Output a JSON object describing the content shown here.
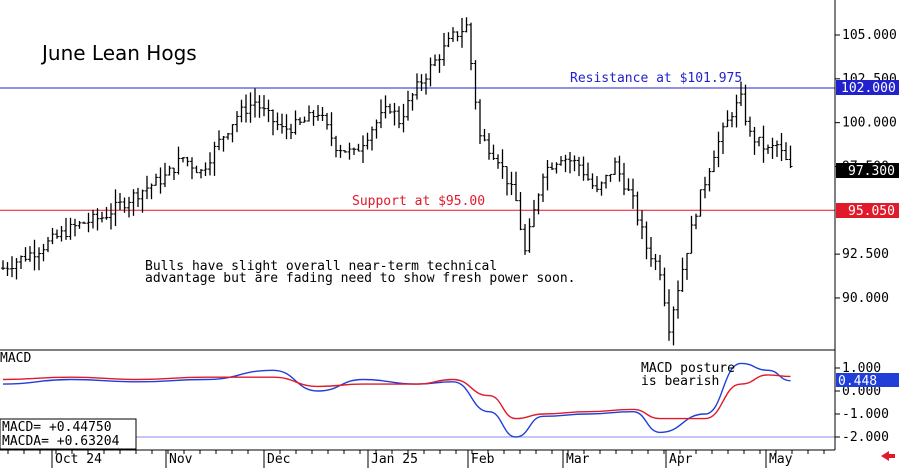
{
  "chart_data": [
    {
      "type": "ohlc",
      "title": "June Lean Hogs",
      "y_ticks": [
        "105.000",
        "102.500",
        "100.000",
        "97.500",
        "92.500",
        "90.000"
      ],
      "ylim": [
        87.5,
        107
      ],
      "x_ticks": [
        "Oct 24",
        "Nov",
        "Dec",
        "Jan 25",
        "Feb",
        "Mar",
        "Apr",
        "May"
      ],
      "reference_lines": [
        {
          "label": "Resistance at $101.975",
          "value": 101.975,
          "price_tag": "102.000",
          "color": "#2222cc"
        },
        {
          "label": "Support at $95.00",
          "value": 95.0,
          "price_tag": "95.050",
          "color": "#e0192b"
        }
      ],
      "last_price_tag": "97.300",
      "last_value": 97.3,
      "annotation": "Bulls have slight overall near-term technical advantage but are fading need to show fresh power soon.",
      "annotation_lines": [
        "Bulls have slight overall near-term technical",
        "advantage but are fading need to show fresh power soon."
      ],
      "close_path": [
        [
          0,
          91.7
        ],
        [
          8,
          92.8
        ],
        [
          14,
          93.8
        ],
        [
          18,
          94.3
        ],
        [
          22,
          94.6
        ],
        [
          26,
          95.3
        ],
        [
          30,
          96.0
        ],
        [
          36,
          96.9
        ],
        [
          40,
          98.0
        ],
        [
          44,
          97.2
        ],
        [
          48,
          98.9
        ],
        [
          52,
          100.4
        ],
        [
          56,
          101.2
        ],
        [
          58,
          100.6
        ],
        [
          62,
          99.6
        ],
        [
          66,
          99.9
        ],
        [
          70,
          100.6
        ],
        [
          74,
          98.7
        ],
        [
          78,
          98.2
        ],
        [
          82,
          99.7
        ],
        [
          86,
          100.9
        ],
        [
          88,
          100.1
        ],
        [
          92,
          102.0
        ],
        [
          96,
          103.5
        ],
        [
          100,
          104.9
        ],
        [
          103,
          105.5
        ],
        [
          106,
          99.2
        ],
        [
          110,
          98.0
        ],
        [
          114,
          95.5
        ],
        [
          116,
          92.6
        ],
        [
          120,
          97.2
        ],
        [
          124,
          98.1
        ],
        [
          128,
          97.6
        ],
        [
          132,
          96.0
        ],
        [
          136,
          97.6
        ],
        [
          140,
          95.5
        ],
        [
          143,
          92.9
        ],
        [
          146,
          91.6
        ],
        [
          148,
          88.4
        ],
        [
          152,
          92.8
        ],
        [
          154,
          95.0
        ],
        [
          158,
          98.3
        ],
        [
          162,
          100.6
        ],
        [
          164,
          101.3
        ],
        [
          166,
          99.3
        ],
        [
          170,
          98.4
        ],
        [
          172,
          98.7
        ],
        [
          175,
          97.3
        ]
      ]
    },
    {
      "type": "line",
      "title": "MACD",
      "y_ticks": [
        "1.000",
        "0.000",
        "-1.000",
        "-2.000"
      ],
      "ylim": [
        -2.3,
        1.5
      ],
      "readout_macd": "MACD=  +0.44750",
      "readout_macda": "MACDA= +0.63204",
      "last_value_tag": "0.448",
      "annotation_lines": [
        "MACD posture",
        "is bearish"
      ],
      "series": [
        {
          "name": "MACD",
          "color": "#1f3fd8",
          "points": [
            [
              0,
              0.3
            ],
            [
              15,
              0.5
            ],
            [
              30,
              0.4
            ],
            [
              45,
              0.5
            ],
            [
              60,
              0.9
            ],
            [
              70,
              0.0
            ],
            [
              80,
              0.5
            ],
            [
              92,
              0.3
            ],
            [
              100,
              0.4
            ],
            [
              108,
              -0.9
            ],
            [
              114,
              -2.0
            ],
            [
              120,
              -1.1
            ],
            [
              130,
              -1.0
            ],
            [
              140,
              -0.9
            ],
            [
              146,
              -1.8
            ],
            [
              156,
              -1.0
            ],
            [
              164,
              1.2
            ],
            [
              170,
              0.9
            ],
            [
              175,
              0.448
            ]
          ]
        },
        {
          "name": "MACDA",
          "color": "#e0192b",
          "points": [
            [
              0,
              0.5
            ],
            [
              15,
              0.6
            ],
            [
              30,
              0.5
            ],
            [
              45,
              0.6
            ],
            [
              60,
              0.6
            ],
            [
              70,
              0.2
            ],
            [
              80,
              0.3
            ],
            [
              92,
              0.3
            ],
            [
              100,
              0.5
            ],
            [
              108,
              -0.2
            ],
            [
              114,
              -1.2
            ],
            [
              120,
              -1.0
            ],
            [
              130,
              -0.9
            ],
            [
              140,
              -0.8
            ],
            [
              146,
              -1.2
            ],
            [
              156,
              -1.2
            ],
            [
              164,
              0.3
            ],
            [
              170,
              0.7
            ],
            [
              175,
              0.632
            ]
          ]
        }
      ]
    }
  ],
  "nav": {
    "arrow": "left-arrow-icon"
  }
}
